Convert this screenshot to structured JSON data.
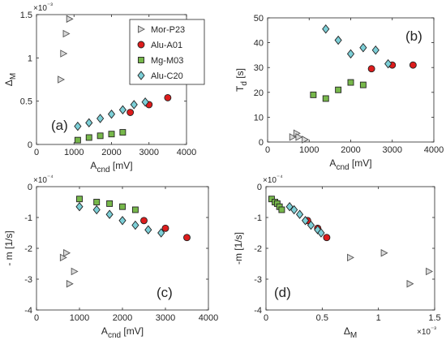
{
  "colors": {
    "mor": "#d9d9d9",
    "alu_a01": "#dd1c1c",
    "mg": "#77b84b",
    "alu_c20": "#7ccfd7",
    "axis": "#262626"
  },
  "legend": {
    "position": "top-right of panel (a)",
    "entries": [
      "Mor-P23",
      "Alu-A01",
      "Mg-M03",
      "Alu-C20"
    ]
  },
  "chart_data": [
    {
      "type": "scatter",
      "panel_label": "(a)",
      "xlabel": "A_cnd [mV]",
      "ylabel": "Δ_M",
      "exponent_label": "×10⁻³",
      "xlim": [
        0,
        4000
      ],
      "ylim": [
        0,
        0.0015
      ],
      "xticks": [
        0,
        1000,
        2000,
        3000,
        4000
      ],
      "xtick_labels": [
        "0",
        "1000",
        "2000",
        "3000",
        "4000"
      ],
      "yticks": [
        0,
        0.0005,
        0.001,
        0.0015
      ],
      "ytick_labels": [
        "0",
        "0.5",
        "1",
        "1.5"
      ],
      "grid": false,
      "series": [
        {
          "name": "Mor-P23",
          "marker": "triangle-right",
          "x": [
            650,
            720,
            790,
            880
          ],
          "y": [
            0.00075,
            0.00105,
            0.00128,
            0.00145
          ]
        },
        {
          "name": "Alu-A01",
          "marker": "circle",
          "x": [
            2500,
            3000,
            3500
          ],
          "y": [
            0.00037,
            0.00046,
            0.00054
          ]
        },
        {
          "name": "Mg-M03",
          "marker": "square",
          "x": [
            1100,
            1400,
            1700,
            2000,
            2300
          ],
          "y": [
            5e-05,
            8e-05,
            0.0001,
            0.00012,
            0.00014
          ]
        },
        {
          "name": "Alu-C20",
          "marker": "diamond",
          "x": [
            1100,
            1400,
            1700,
            2000,
            2300,
            2600,
            2900
          ],
          "y": [
            0.00021,
            0.00025,
            0.0003,
            0.00035,
            0.0004,
            0.00046,
            0.00049
          ]
        }
      ]
    },
    {
      "type": "scatter",
      "panel_label": "(b)",
      "xlabel": "A_cnd [mV]",
      "ylabel": "T_d [s]",
      "xlim": [
        0,
        4000
      ],
      "ylim": [
        0,
        50
      ],
      "xticks": [
        0,
        1000,
        2000,
        3000,
        4000
      ],
      "xtick_labels": [
        "0",
        "1000",
        "2000",
        "3000",
        "4000"
      ],
      "yticks": [
        0,
        10,
        20,
        30,
        40,
        50
      ],
      "ytick_labels": [
        "0",
        "10",
        "20",
        "30",
        "40",
        "50"
      ],
      "grid": false,
      "series": [
        {
          "name": "Mor-P23",
          "marker": "triangle-right",
          "x": [
            600,
            700,
            750,
            900
          ],
          "y": [
            2,
            3.5,
            2,
            1
          ]
        },
        {
          "name": "Alu-A01",
          "marker": "circle",
          "x": [
            2500,
            3000,
            3500
          ],
          "y": [
            29.5,
            31,
            31
          ]
        },
        {
          "name": "Mg-M03",
          "marker": "square",
          "x": [
            1100,
            1400,
            1700,
            2000,
            2300
          ],
          "y": [
            19,
            17.5,
            21,
            24,
            23
          ]
        },
        {
          "name": "Alu-C20",
          "marker": "diamond",
          "x": [
            1400,
            1700,
            2000,
            2300,
            2600,
            2900
          ],
          "y": [
            45.5,
            41,
            35.5,
            38,
            37,
            31.5
          ]
        }
      ]
    },
    {
      "type": "scatter",
      "panel_label": "(c)",
      "xlabel": "A_cnd [mV]",
      "ylabel": "- m [1/s]",
      "exponent_label": "×10⁻⁴",
      "xlim": [
        0,
        4000
      ],
      "ylim": [
        -0.0004,
        0
      ],
      "xticks": [
        0,
        1000,
        2000,
        3000,
        4000
      ],
      "xtick_labels": [
        "0",
        "1000",
        "2000",
        "3000",
        "4000"
      ],
      "yticks": [
        -0.0004,
        -0.0003,
        -0.0002,
        -0.0001,
        0
      ],
      "ytick_labels": [
        "-4",
        "-3",
        "-2",
        "-1",
        "0"
      ],
      "grid": false,
      "series": [
        {
          "name": "Mor-P23",
          "marker": "triangle-right",
          "x": [
            620,
            700,
            770,
            880
          ],
          "y": [
            -0.00023,
            -0.000215,
            -0.000315,
            -0.000275
          ]
        },
        {
          "name": "Alu-A01",
          "marker": "circle",
          "x": [
            2500,
            3000,
            3500
          ],
          "y": [
            -0.00011,
            -0.000135,
            -0.000165
          ]
        },
        {
          "name": "Mg-M03",
          "marker": "square",
          "x": [
            1000,
            1400,
            1700,
            2000,
            2300
          ],
          "y": [
            -4e-05,
            -5e-05,
            -5.5e-05,
            -6.5e-05,
            -7.5e-05
          ]
        },
        {
          "name": "Alu-C20",
          "marker": "diamond",
          "x": [
            1000,
            1400,
            1700,
            2000,
            2300,
            2600,
            2900
          ],
          "y": [
            -6.5e-05,
            -7.5e-05,
            -9e-05,
            -0.00011,
            -0.000125,
            -0.00014,
            -0.00015
          ]
        }
      ]
    },
    {
      "type": "scatter",
      "panel_label": "(d)",
      "xlabel": "Δ_M",
      "ylabel": "-m [1/s]",
      "exponent_label": "×10⁻⁴",
      "x_exponent_label": "×10⁻³",
      "xlim": [
        0,
        0.0015
      ],
      "ylim": [
        -0.0004,
        0
      ],
      "xticks": [
        0,
        0.0005,
        0.001,
        0.0015
      ],
      "xtick_labels": [
        "0",
        "0.5",
        "1",
        "1.5"
      ],
      "yticks": [
        -0.0004,
        -0.0003,
        -0.0002,
        -0.0001,
        0
      ],
      "ytick_labels": [
        "-4",
        "-3",
        "-2",
        "-1",
        "0"
      ],
      "grid": false,
      "series": [
        {
          "name": "Mor-P23",
          "marker": "triangle-right",
          "x": [
            0.00075,
            0.00105,
            0.00128,
            0.00145
          ],
          "y": [
            -0.00023,
            -0.000215,
            -0.000315,
            -0.000275
          ]
        },
        {
          "name": "Alu-A01",
          "marker": "circle",
          "x": [
            0.00037,
            0.00046,
            0.00054
          ],
          "y": [
            -0.00011,
            -0.000135,
            -0.000165
          ]
        },
        {
          "name": "Mg-M03",
          "marker": "square",
          "x": [
            5e-05,
            8e-05,
            0.0001,
            0.00012,
            0.00014
          ],
          "y": [
            -4e-05,
            -5e-05,
            -5.5e-05,
            -6.5e-05,
            -7.5e-05
          ]
        },
        {
          "name": "Alu-C20",
          "marker": "diamond",
          "x": [
            0.00021,
            0.00025,
            0.0003,
            0.00035,
            0.0004,
            0.00046,
            0.00049
          ],
          "y": [
            -6.5e-05,
            -7.5e-05,
            -9e-05,
            -0.00011,
            -0.000125,
            -0.00014,
            -0.00015
          ]
        }
      ]
    }
  ]
}
